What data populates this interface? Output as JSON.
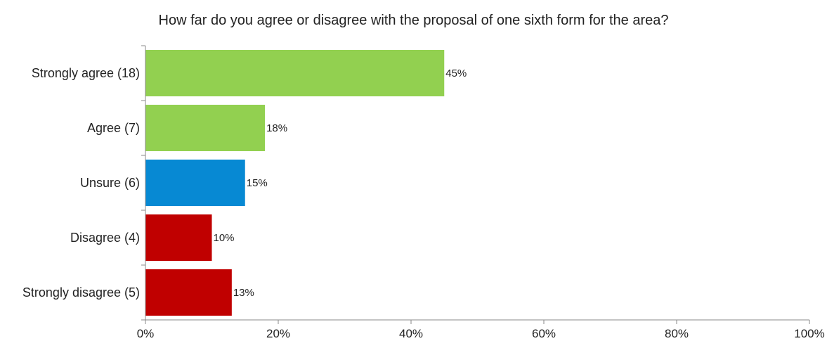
{
  "chart_data": {
    "type": "bar",
    "orientation": "horizontal",
    "title": "How far do you agree or disagree with the proposal of one sixth form for the area?",
    "categories": [
      "Strongly agree (18)",
      "Agree (7)",
      "Unsure (6)",
      "Disagree (4)",
      "Strongly disagree (5)"
    ],
    "values": [
      45,
      18,
      15,
      10,
      13
    ],
    "value_labels": [
      "45%",
      "18%",
      "15%",
      "10%",
      "13%"
    ],
    "colors": [
      "#92d050",
      "#92d050",
      "#0789d3",
      "#c00000",
      "#c00000"
    ],
    "xlim": [
      0,
      100
    ],
    "x_ticks": [
      0,
      20,
      40,
      60,
      80,
      100
    ],
    "x_tick_labels": [
      "0%",
      "20%",
      "40%",
      "60%",
      "80%",
      "100%"
    ],
    "xlabel": "",
    "ylabel": "",
    "grid": false,
    "legend": "none"
  }
}
